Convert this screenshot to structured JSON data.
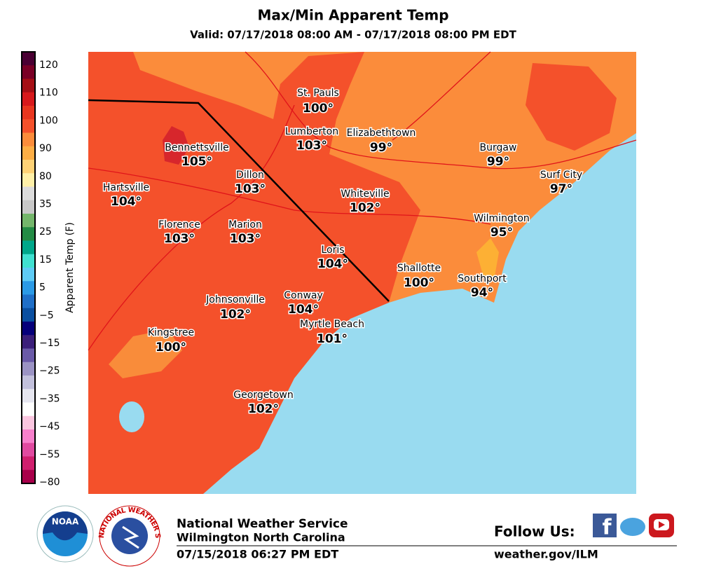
{
  "header": {
    "title": "Max/Min Apparent Temp",
    "subtitle": "Valid: 07/17/2018 08:00 AM - 07/17/2018 08:00 PM EDT"
  },
  "colorbar": {
    "label": "Apparent Temp (F)",
    "ticks": [
      "120",
      "110",
      "100",
      "90",
      "80",
      "35",
      "25",
      "15",
      "5",
      "−5",
      "−15",
      "−25",
      "−35",
      "−45",
      "−55",
      "−80"
    ]
  },
  "map": {
    "cities": [
      {
        "name": "St. Pauls",
        "temp": "100°"
      },
      {
        "name": "Lumberton",
        "temp": "103°"
      },
      {
        "name": "Elizabethtown",
        "temp": "99°"
      },
      {
        "name": "Burgaw",
        "temp": "99°"
      },
      {
        "name": "Bennettsville",
        "temp": "105°"
      },
      {
        "name": "Dillon",
        "temp": "103°"
      },
      {
        "name": "Surf City",
        "temp": "97°"
      },
      {
        "name": "Hartsville",
        "temp": "104°"
      },
      {
        "name": "Whiteville",
        "temp": "102°"
      },
      {
        "name": "Wilmington",
        "temp": "95°"
      },
      {
        "name": "Florence",
        "temp": "103°"
      },
      {
        "name": "Marion",
        "temp": "103°"
      },
      {
        "name": "Loris",
        "temp": "104°"
      },
      {
        "name": "Shallotte",
        "temp": "100°"
      },
      {
        "name": "Southport",
        "temp": "94°"
      },
      {
        "name": "Johnsonville",
        "temp": "102°"
      },
      {
        "name": "Conway",
        "temp": "104°"
      },
      {
        "name": "Myrtle Beach",
        "temp": "101°"
      },
      {
        "name": "Kingstree",
        "temp": "100°"
      },
      {
        "name": "Georgetown",
        "temp": "102°"
      }
    ]
  },
  "footer": {
    "office": "National Weather Service",
    "location": "Wilmington North Carolina",
    "issued": "07/15/2018 06:27 PM EDT",
    "follow": "Follow Us:",
    "url": "weather.gov/ILM",
    "noaa": "NOAA",
    "nws": "NATIONAL WEATHER SERVICE"
  }
}
